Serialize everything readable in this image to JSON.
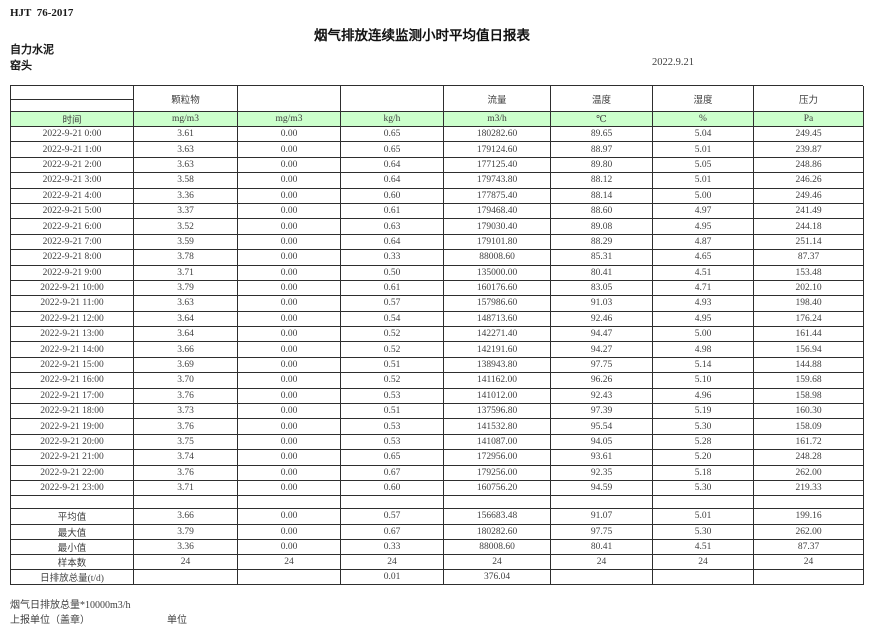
{
  "page": {
    "standard": "HJT  76-2017",
    "title": "烟气排放连续监测小时平均值日报表",
    "company": "自力水泥",
    "station": "窑头",
    "date": "2022.9.21"
  },
  "table": {
    "header_groups": [
      "颗粒物",
      "",
      "",
      "流量",
      "温度",
      "湿度",
      "压力"
    ],
    "units_row": [
      "时间",
      "mg/m3",
      "mg/m3",
      "kg/h",
      "m3/h",
      "℃",
      "%",
      "Pa"
    ],
    "rows": [
      [
        "2022-9-21 0:00",
        "3.61",
        "0.00",
        "0.65",
        "180282.60",
        "89.65",
        "5.04",
        "249.45"
      ],
      [
        "2022-9-21 1:00",
        "3.63",
        "0.00",
        "0.65",
        "179124.60",
        "88.97",
        "5.01",
        "239.87"
      ],
      [
        "2022-9-21 2:00",
        "3.63",
        "0.00",
        "0.64",
        "177125.40",
        "89.80",
        "5.05",
        "248.86"
      ],
      [
        "2022-9-21 3:00",
        "3.58",
        "0.00",
        "0.64",
        "179743.80",
        "88.12",
        "5.01",
        "246.26"
      ],
      [
        "2022-9-21 4:00",
        "3.36",
        "0.00",
        "0.60",
        "177875.40",
        "88.14",
        "5.00",
        "249.46"
      ],
      [
        "2022-9-21 5:00",
        "3.37",
        "0.00",
        "0.61",
        "179468.40",
        "88.60",
        "4.97",
        "241.49"
      ],
      [
        "2022-9-21 6:00",
        "3.52",
        "0.00",
        "0.63",
        "179030.40",
        "89.08",
        "4.95",
        "244.18"
      ],
      [
        "2022-9-21 7:00",
        "3.59",
        "0.00",
        "0.64",
        "179101.80",
        "88.29",
        "4.87",
        "251.14"
      ],
      [
        "2022-9-21 8:00",
        "3.78",
        "0.00",
        "0.33",
        "88008.60",
        "85.31",
        "4.65",
        "87.37"
      ],
      [
        "2022-9-21 9:00",
        "3.71",
        "0.00",
        "0.50",
        "135000.00",
        "80.41",
        "4.51",
        "153.48"
      ],
      [
        "2022-9-21 10:00",
        "3.79",
        "0.00",
        "0.61",
        "160176.60",
        "83.05",
        "4.71",
        "202.10"
      ],
      [
        "2022-9-21 11:00",
        "3.63",
        "0.00",
        "0.57",
        "157986.60",
        "91.03",
        "4.93",
        "198.40"
      ],
      [
        "2022-9-21 12:00",
        "3.64",
        "0.00",
        "0.54",
        "148713.60",
        "92.46",
        "4.95",
        "176.24"
      ],
      [
        "2022-9-21 13:00",
        "3.64",
        "0.00",
        "0.52",
        "142271.40",
        "94.47",
        "5.00",
        "161.44"
      ],
      [
        "2022-9-21 14:00",
        "3.66",
        "0.00",
        "0.52",
        "142191.60",
        "94.27",
        "4.98",
        "156.94"
      ],
      [
        "2022-9-21 15:00",
        "3.69",
        "0.00",
        "0.51",
        "138943.80",
        "97.75",
        "5.14",
        "144.88"
      ],
      [
        "2022-9-21 16:00",
        "3.70",
        "0.00",
        "0.52",
        "141162.00",
        "96.26",
        "5.10",
        "159.68"
      ],
      [
        "2022-9-21 17:00",
        "3.76",
        "0.00",
        "0.53",
        "141012.00",
        "92.43",
        "4.96",
        "158.98"
      ],
      [
        "2022-9-21 18:00",
        "3.73",
        "0.00",
        "0.51",
        "137596.80",
        "97.39",
        "5.19",
        "160.30"
      ],
      [
        "2022-9-21 19:00",
        "3.76",
        "0.00",
        "0.53",
        "141532.80",
        "95.54",
        "5.30",
        "158.09"
      ],
      [
        "2022-9-21 20:00",
        "3.75",
        "0.00",
        "0.53",
        "141087.00",
        "94.05",
        "5.28",
        "161.72"
      ],
      [
        "2022-9-21 21:00",
        "3.74",
        "0.00",
        "0.65",
        "172956.00",
        "93.61",
        "5.20",
        "248.28"
      ],
      [
        "2022-9-21 22:00",
        "3.76",
        "0.00",
        "0.67",
        "179256.00",
        "92.35",
        "5.18",
        "262.00"
      ],
      [
        "2022-9-21 23:00",
        "3.71",
        "0.00",
        "0.60",
        "160756.20",
        "94.59",
        "5.30",
        "219.33"
      ]
    ],
    "summary": [
      [
        "平均值",
        "3.66",
        "0.00",
        "0.57",
        "156683.48",
        "91.07",
        "5.01",
        "199.16"
      ],
      [
        "最大值",
        "3.79",
        "0.00",
        "0.67",
        "180282.60",
        "97.75",
        "5.30",
        "262.00"
      ],
      [
        "最小值",
        "3.36",
        "0.00",
        "0.33",
        "88008.60",
        "80.41",
        "4.51",
        "87.37"
      ],
      [
        "样本数",
        "24",
        "24",
        "24",
        "24",
        "24",
        "24",
        "24"
      ],
      [
        "日排放总量(t/d)",
        "",
        "",
        "0.01",
        "376.04",
        "",
        "",
        ""
      ]
    ],
    "footnotes": {
      "total_volume": "烟气日排放总量*10000m3/h",
      "report_unit": "上报单位（盖章）",
      "unit_label": "单位"
    }
  }
}
